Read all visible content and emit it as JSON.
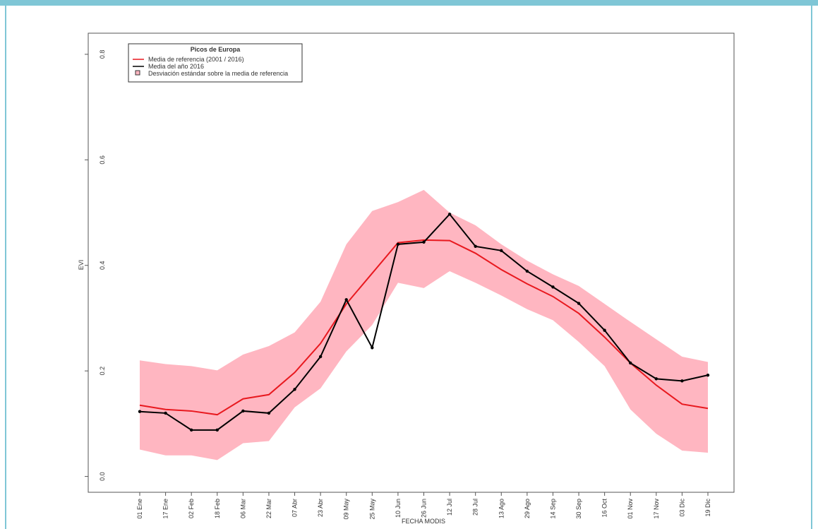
{
  "chart_data": {
    "type": "line",
    "legend_title": "Picos de Europa",
    "y_label": "EVI",
    "x_label": "FECHA MODIS",
    "categories": [
      "01 Ene",
      "17 Ene",
      "02 Feb",
      "18 Feb",
      "06 Mar",
      "22 Mar",
      "07 Abr",
      "23 Abr",
      "09 May",
      "25 May",
      "10 Jun",
      "26 Jun",
      "12 Jul",
      "28 Jul",
      "13 Ago",
      "29 Ago",
      "14 Sep",
      "30 Sep",
      "16 Oct",
      "01 Nov",
      "17 Nov",
      "03 Dic",
      "19 Dic"
    ],
    "ylim": [
      -0.03,
      0.84
    ],
    "yticks": [
      {
        "value": 0,
        "label": "0.0"
      },
      {
        "value": 0.2,
        "label": "0.2"
      },
      {
        "value": 0.4,
        "label": "0.4"
      },
      {
        "value": 0.6,
        "label": "0.6"
      },
      {
        "value": 0.8,
        "label": "0.8"
      }
    ],
    "band": {
      "name": "Desviación estándar sobre la media de referencia",
      "color": "#ffb6c1",
      "upper": [
        0.22,
        0.213,
        0.209,
        0.201,
        0.231,
        0.247,
        0.273,
        0.331,
        0.44,
        0.503,
        0.52,
        0.543,
        0.5,
        0.476,
        0.44,
        0.409,
        0.383,
        0.361,
        0.327,
        0.293,
        0.26,
        0.227,
        0.217
      ],
      "lower": [
        0.051,
        0.04,
        0.04,
        0.031,
        0.063,
        0.067,
        0.131,
        0.167,
        0.237,
        0.287,
        0.367,
        0.357,
        0.389,
        0.367,
        0.343,
        0.317,
        0.296,
        0.255,
        0.209,
        0.127,
        0.081,
        0.049,
        0.045
      ]
    },
    "series": [
      {
        "name": "Media de referencia (2001 / 2016)",
        "color": "#e8191f",
        "values": [
          0.135,
          0.127,
          0.124,
          0.117,
          0.147,
          0.155,
          0.197,
          0.252,
          0.327,
          0.385,
          0.443,
          0.448,
          0.447,
          0.423,
          0.392,
          0.365,
          0.341,
          0.309,
          0.264,
          0.215,
          0.173,
          0.137,
          0.129
        ]
      },
      {
        "name": "Media del año 2016",
        "color": "#000000",
        "markers": true,
        "values": [
          0.123,
          0.12,
          0.088,
          0.088,
          0.124,
          0.12,
          0.165,
          0.227,
          0.335,
          0.244,
          0.44,
          0.444,
          0.497,
          0.436,
          0.428,
          0.389,
          0.359,
          0.328,
          0.277,
          0.215,
          0.185,
          0.181,
          0.192
        ]
      }
    ]
  }
}
